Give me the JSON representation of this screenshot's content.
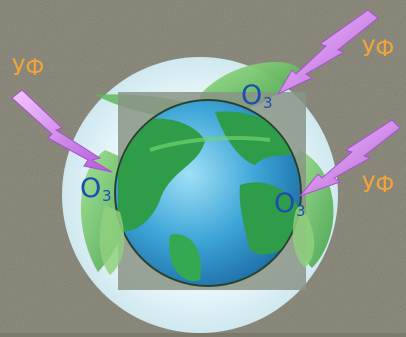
{
  "labels": {
    "uv": "УФ",
    "ozone": "О",
    "ozone_subscript": "3"
  },
  "colors": {
    "background": "#7b7a6c",
    "halo": "#e6f4f8",
    "square": "#8a9486",
    "ocean": "#3fa6d8",
    "land": "#2f9c4a",
    "leaf": "#6fc86a",
    "uv_ray": "#d07ae8",
    "uv_label": "#f2a33a",
    "ozone_label": "#1a4fb0"
  }
}
